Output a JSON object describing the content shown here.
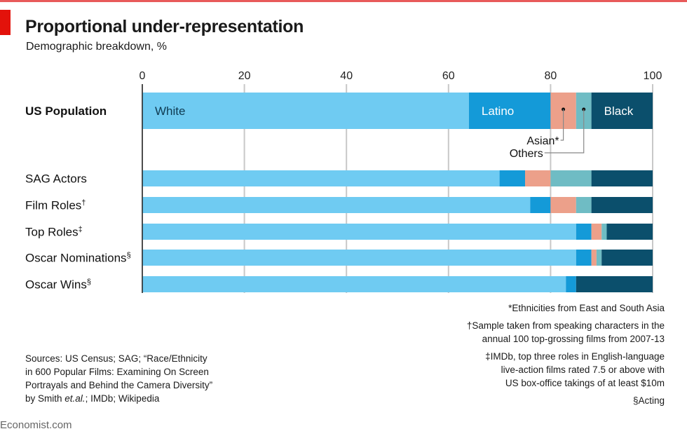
{
  "header": {
    "title": "Proportional under-representation",
    "subtitle": "Demographic breakdown, %"
  },
  "chart_data": {
    "type": "bar",
    "orientation": "horizontal",
    "stacked": true,
    "title": "Proportional under-representation",
    "subtitle": "Demographic breakdown, %",
    "xlim": [
      0,
      100
    ],
    "xticks": [
      "0",
      "20",
      "40",
      "60",
      "80",
      "100"
    ],
    "grid": true,
    "categories": [
      {
        "label": "US Population",
        "mark": ""
      },
      {
        "label": "SAG Actors",
        "mark": ""
      },
      {
        "label": "Film Roles",
        "mark": "†"
      },
      {
        "label": "Top Roles",
        "mark": "‡"
      },
      {
        "label": "Oscar Nominations",
        "mark": "§"
      },
      {
        "label": "Oscar Wins",
        "mark": "§"
      }
    ],
    "series": [
      {
        "name": "White",
        "color": "#6fcbf2",
        "values": [
          64,
          70,
          76,
          85,
          85,
          83
        ]
      },
      {
        "name": "Latino",
        "color": "#149ad8",
        "values": [
          16,
          5,
          4,
          3,
          3,
          2
        ]
      },
      {
        "name": "Asian*",
        "color": "#eca08a",
        "values": [
          5,
          5,
          5,
          2,
          1,
          0
        ]
      },
      {
        "name": "Others",
        "color": "#6fbcc4",
        "values": [
          3,
          8,
          3,
          1,
          1,
          0
        ]
      },
      {
        "name": "Black",
        "color": "#0b4f6c",
        "values": [
          12,
          12,
          12,
          9,
          10,
          15
        ]
      }
    ],
    "inline_labels": {
      "White": "White",
      "Latino": "Latino",
      "Black": "Black"
    },
    "annotations": {
      "asian": "Asian*",
      "others": "Others"
    }
  },
  "footnotes": {
    "asterisk": "*Ethnicities from East and South Asia",
    "dagger_1": "†Sample taken from speaking characters in the",
    "dagger_2": "annual 100 top-grossing films from 2007-13",
    "ddagger_1": "‡IMDb, top three roles in English-language",
    "ddagger_2": "live-action films rated 7.5 or above with",
    "ddagger_3": "US box-office takings of at least $10m",
    "section": "§Acting"
  },
  "sources": {
    "line1": "Sources: US Census; SAG; “Race/Ethnicity",
    "line2": "in 600 Popular Films: Examining On Screen",
    "line3": "Portrayals and Behind the Camera Diversity”",
    "line4a": "by Smith ",
    "line4b": "et.al.",
    "line4c": "; IMDb; Wikipedia"
  },
  "brand": "Economist.com"
}
